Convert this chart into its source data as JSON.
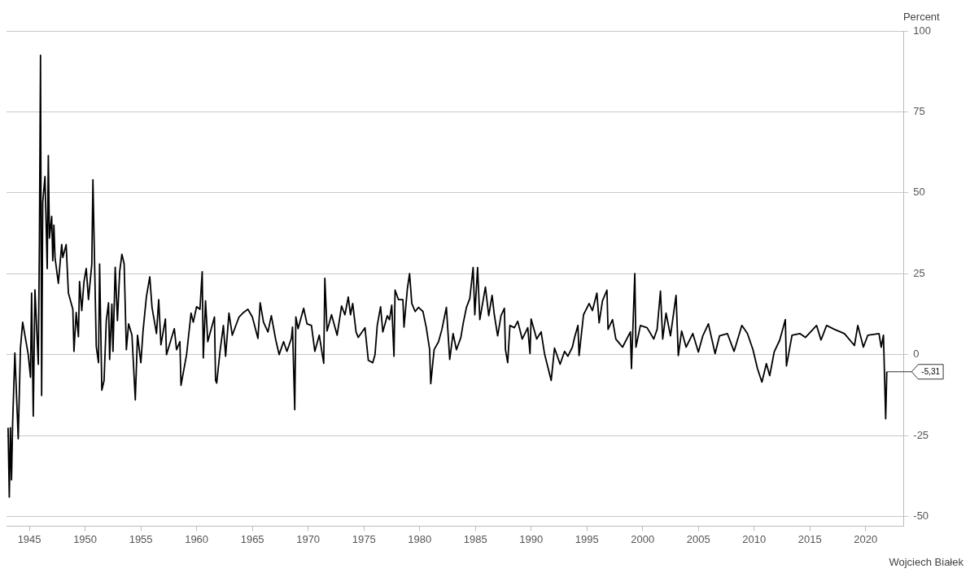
{
  "chart_data": {
    "type": "line",
    "ylabel": "Percent",
    "xlim": [
      1942.95,
      2023.4
    ],
    "xticks": [
      1945,
      1950,
      1955,
      1960,
      1965,
      1970,
      1975,
      1980,
      1985,
      1990,
      1995,
      2000,
      2005,
      2010,
      2015,
      2020
    ],
    "ylim": [
      -53,
      100
    ],
    "yticks": [
      -50,
      -25,
      0,
      25,
      50,
      75,
      100
    ],
    "grid": "y",
    "legend": false,
    "marker": "none",
    "line_style": "solid",
    "annotations": [
      {
        "text": "-5,31",
        "x": 2021.9,
        "y": -5.31
      },
      "Wojciech Białek"
    ],
    "x": [
      1943.09,
      1943.2,
      1943.3,
      1943.4,
      1943.5,
      1943.7,
      1944.0,
      1944.2,
      1944.4,
      1944.6,
      1944.9,
      1945.1,
      1945.2,
      1945.35,
      1945.5,
      1945.8,
      1945.9,
      1946.0,
      1946.1,
      1946.2,
      1946.4,
      1946.6,
      1946.7,
      1946.8,
      1947.0,
      1947.1,
      1947.2,
      1947.3,
      1947.6,
      1947.9,
      1948.0,
      1948.3,
      1948.5,
      1948.9,
      1949.0,
      1949.2,
      1949.4,
      1949.5,
      1949.7,
      1949.9,
      1950.1,
      1950.3,
      1950.6,
      1950.7,
      1951.0,
      1951.2,
      1951.3,
      1951.5,
      1951.7,
      1951.9,
      1952.1,
      1952.2,
      1952.4,
      1952.5,
      1952.7,
      1952.9,
      1953.1,
      1953.3,
      1953.5,
      1953.7,
      1953.9,
      1954.2,
      1954.5,
      1954.7,
      1955.0,
      1955.2,
      1955.5,
      1955.8,
      1956.0,
      1956.4,
      1956.6,
      1956.8,
      1957.2,
      1957.3,
      1958.0,
      1958.2,
      1958.5,
      1958.6,
      1959.1,
      1959.5,
      1959.7,
      1960.0,
      1960.3,
      1960.5,
      1960.6,
      1960.8,
      1961.0,
      1961.6,
      1961.7,
      1961.8,
      1962.1,
      1962.4,
      1962.6,
      1962.9,
      1963.2,
      1963.8,
      1964.2,
      1964.6,
      1965.0,
      1965.5,
      1965.7,
      1966.0,
      1966.4,
      1966.7,
      1967.1,
      1967.4,
      1967.8,
      1968.1,
      1968.5,
      1968.6,
      1968.8,
      1968.9,
      1969.1,
      1969.6,
      1969.9,
      1970.3,
      1970.6,
      1971.0,
      1971.4,
      1971.5,
      1971.7,
      1972.1,
      1972.6,
      1973.0,
      1973.3,
      1973.6,
      1973.8,
      1974.0,
      1974.3,
      1974.5,
      1975.1,
      1975.4,
      1975.8,
      1976.0,
      1976.2,
      1976.5,
      1976.7,
      1977.1,
      1977.3,
      1977.5,
      1977.7,
      1977.8,
      1978.1,
      1978.5,
      1978.6,
      1978.9,
      1979.1,
      1979.3,
      1979.6,
      1979.9,
      1980.3,
      1980.6,
      1980.9,
      1981.0,
      1981.3,
      1981.7,
      1982.0,
      1982.4,
      1982.7,
      1983.0,
      1983.3,
      1983.7,
      1983.9,
      1984.2,
      1984.5,
      1984.8,
      1984.95,
      1985.2,
      1985.4,
      1985.9,
      1986.2,
      1986.5,
      1986.7,
      1987.0,
      1987.3,
      1987.6,
      1987.7,
      1987.9,
      1988.1,
      1988.5,
      1988.8,
      1989.2,
      1989.7,
      1989.9,
      1990.0,
      1990.5,
      1990.9,
      1991.2,
      1991.8,
      1992.1,
      1992.6,
      1993.0,
      1993.3,
      1993.7,
      1993.9,
      1994.2,
      1994.3,
      1994.7,
      1995.2,
      1995.5,
      1995.9,
      1996.1,
      1996.4,
      1996.8,
      1996.9,
      1997.3,
      1997.6,
      1998.2,
      1998.9,
      1999.0,
      1999.3,
      1999.4,
      1999.8,
      2000.4,
      2001.0,
      2001.3,
      2001.6,
      2001.8,
      2002.1,
      2002.5,
      2003.0,
      2003.2,
      2003.5,
      2003.9,
      2004.5,
      2005.0,
      2005.4,
      2005.9,
      2006.5,
      2006.9,
      2007.6,
      2008.2,
      2008.9,
      2009.4,
      2009.9,
      2010.3,
      2010.7,
      2011.1,
      2011.4,
      2011.8,
      2012.3,
      2012.8,
      2012.9,
      2013.4,
      2014.1,
      2014.6,
      2015.6,
      2016.0,
      2016.5,
      2017.2,
      2018.1,
      2019.0,
      2019.3,
      2019.8,
      2020.2,
      2021.2,
      2021.4,
      2021.6,
      2021.8,
      2021.9
    ],
    "series": [
      {
        "color": "#000000",
        "values": [
          -22.6,
          -44,
          -22.6,
          -38.7,
          -21,
          0.5,
          -26,
          2,
          10,
          6,
          0,
          -7,
          19,
          -19,
          20,
          -3,
          35,
          92.5,
          -12.6,
          47,
          55,
          26.6,
          61.5,
          36,
          42.7,
          29,
          40,
          30,
          22,
          34,
          30,
          34,
          19,
          14,
          1,
          13,
          5.5,
          22.6,
          13.6,
          22.6,
          26.6,
          17,
          28,
          54,
          2.5,
          -2.5,
          28,
          -11,
          -8,
          10.5,
          16,
          -1.5,
          15.6,
          1,
          27,
          10.5,
          25.6,
          31,
          28,
          1.5,
          9.5,
          6,
          -14,
          6,
          -2.5,
          7.5,
          18,
          24,
          14.6,
          6.5,
          17,
          3,
          11,
          0,
          8,
          1.5,
          4,
          -9.5,
          0,
          12.8,
          10,
          14.8,
          14,
          25.6,
          -1,
          16.6,
          4,
          11.6,
          -8,
          -8.8,
          1,
          9,
          -0.5,
          12.8,
          6,
          11.6,
          13,
          14,
          11.6,
          5,
          16,
          10,
          7,
          12,
          4.5,
          0,
          4,
          1,
          5,
          8.5,
          -17,
          11.6,
          8,
          14.3,
          9.5,
          9,
          1,
          6,
          -2.7,
          23.6,
          7.3,
          12.3,
          6,
          15,
          12.3,
          17.8,
          12.3,
          15.8,
          7,
          5.3,
          8.3,
          -1.8,
          -2.5,
          0,
          9,
          14.8,
          7,
          12,
          10.8,
          15.3,
          -0.5,
          19.9,
          17,
          17,
          8.5,
          20.3,
          25,
          15.8,
          13.3,
          14.6,
          13.3,
          8.3,
          1.5,
          -9,
          1.5,
          4,
          7.8,
          14.6,
          -1.5,
          6.5,
          1.5,
          5.3,
          9.5,
          14.6,
          17.3,
          26.9,
          12.3,
          26.9,
          10.8,
          20.9,
          12,
          18.3,
          12.3,
          5.8,
          12,
          14.3,
          1.5,
          -2.5,
          9,
          8.3,
          10.3,
          4.8,
          8.3,
          0.3,
          11,
          4.8,
          7,
          0.3,
          -8,
          2,
          -3,
          1,
          -0.5,
          2.3,
          5.3,
          9,
          -0.3,
          12.3,
          15.8,
          13.6,
          19,
          9.8,
          16.6,
          19.9,
          7.8,
          10.8,
          4.8,
          2.3,
          7,
          -4.3,
          25,
          2.3,
          9,
          8.3,
          4.8,
          7.8,
          19.6,
          4.8,
          12.8,
          5.8,
          18.3,
          -0.3,
          7.3,
          2.3,
          6.5,
          0.8,
          5.8,
          9.5,
          0.3,
          5.8,
          6.5,
          1,
          9,
          6.5,
          1.5,
          -4.3,
          -8.5,
          -2.8,
          -6.5,
          0.8,
          4.5,
          10.8,
          -3.5,
          6,
          6.5,
          5.3,
          9,
          4.5,
          9,
          7.8,
          6.5,
          2.8,
          9,
          2.3,
          6,
          6.5,
          2.3,
          6,
          -19.8,
          -5.31
        ]
      }
    ]
  }
}
